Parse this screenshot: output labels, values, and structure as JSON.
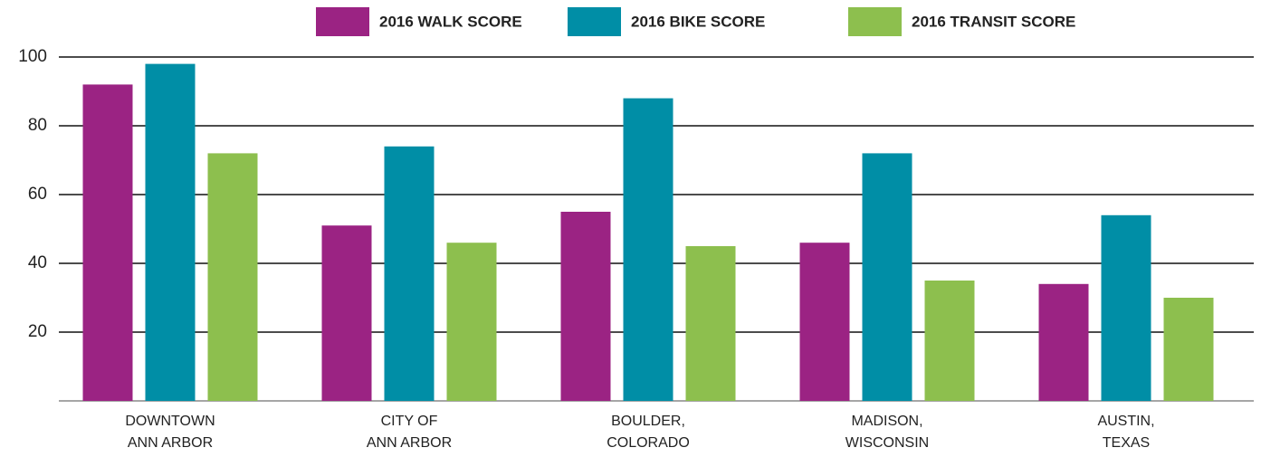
{
  "chart_data": {
    "type": "bar",
    "categories": [
      "DOWNTOWN\nANN ARBOR",
      "CITY OF\nANN ARBOR",
      "BOULDER,\nCOLORADO",
      "MADISON,\nWISCONSIN",
      "AUSTIN,\nTEXAS"
    ],
    "series": [
      {
        "name": "2016 WALK SCORE",
        "color": "#9b2383",
        "values": [
          92,
          51,
          55,
          46,
          34
        ]
      },
      {
        "name": "2016 BIKE SCORE",
        "color": "#008ea6",
        "values": [
          98,
          74,
          88,
          72,
          54
        ]
      },
      {
        "name": "2016 TRANSIT SCORE",
        "color": "#8dbf4e",
        "values": [
          72,
          46,
          45,
          35,
          30
        ]
      }
    ],
    "ylim": [
      0,
      100
    ],
    "yticks": [
      20,
      40,
      60,
      80,
      100
    ],
    "grid": true,
    "legend": "top"
  }
}
